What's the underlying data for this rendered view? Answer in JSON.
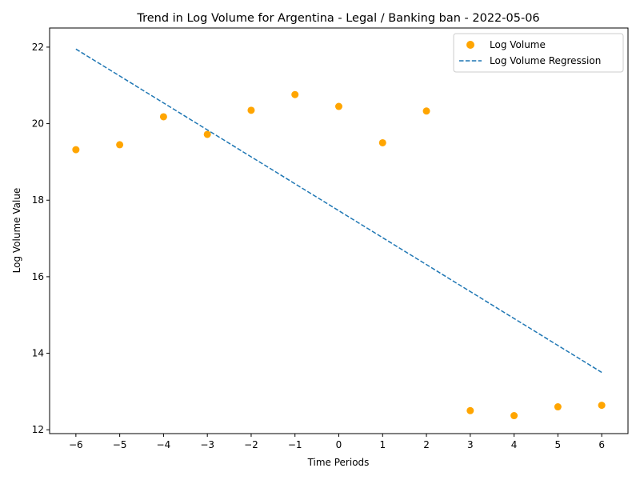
{
  "chart_data": {
    "type": "scatter",
    "title": "Trend in Log Volume for Argentina - Legal /  Banking ban - 2022-05-06",
    "xlabel": "Time Periods",
    "ylabel": "Log Volume Value",
    "xlim": [
      -6.6,
      6.6
    ],
    "ylim": [
      11.9,
      22.5
    ],
    "x_ticks": [
      -6,
      -5,
      -4,
      -3,
      -2,
      -1,
      0,
      1,
      2,
      3,
      4,
      5,
      6
    ],
    "x_tick_labels": [
      "−6",
      "−5",
      "−4",
      "−3",
      "−2",
      "−1",
      "0",
      "1",
      "2",
      "3",
      "4",
      "5",
      "6"
    ],
    "y_ticks": [
      12,
      14,
      16,
      18,
      20,
      22
    ],
    "y_tick_labels": [
      "12",
      "14",
      "16",
      "18",
      "20",
      "22"
    ],
    "grid": false,
    "legend_position": "top-right",
    "series": [
      {
        "name": "Log Volume",
        "kind": "scatter",
        "color": "#ffa500",
        "x": [
          -6,
          -5,
          -4,
          -3,
          -2,
          -1,
          0,
          1,
          2,
          3,
          4,
          5,
          6
        ],
        "y": [
          19.32,
          19.45,
          20.18,
          19.72,
          20.35,
          20.76,
          20.45,
          19.5,
          20.33,
          12.5,
          12.37,
          12.6,
          12.64
        ]
      },
      {
        "name": "Log Volume Regression",
        "kind": "line",
        "style": "dashed",
        "color": "#1f77b4",
        "x": [
          -6,
          6
        ],
        "y": [
          21.95,
          13.5
        ]
      }
    ]
  }
}
